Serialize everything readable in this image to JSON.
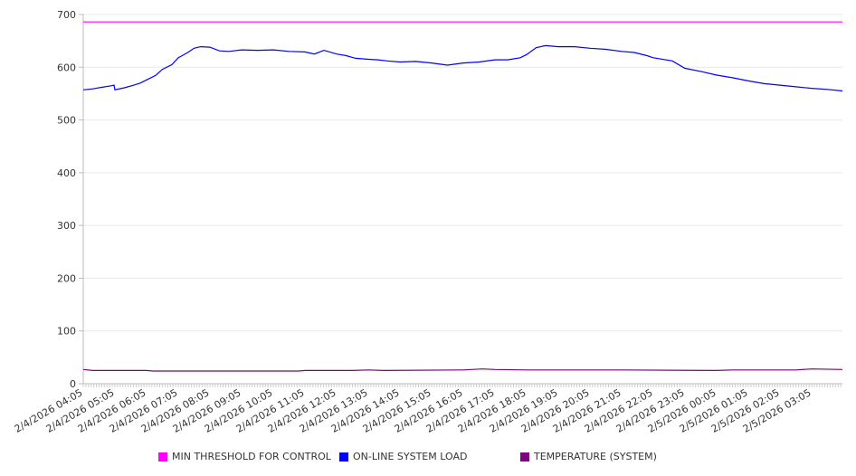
{
  "chart_data": {
    "type": "line",
    "title": "",
    "xlabel": "",
    "ylabel": "",
    "ylim": [
      0,
      700
    ],
    "yticks": [
      0,
      100,
      200,
      300,
      400,
      500,
      600,
      700
    ],
    "x_unit": "hours since 2/4/2026 04:05",
    "xlim": [
      0,
      23.97
    ],
    "xtick_labels": [
      "2/4/2026 04:05",
      "2/4/2026 05:05",
      "2/4/2026 06:05",
      "2/4/2026 07:05",
      "2/4/2026 08:05",
      "2/4/2026 09:05",
      "2/4/2026 10:05",
      "2/4/2026 11:05",
      "2/4/2026 12:05",
      "2/4/2026 13:05",
      "2/4/2026 14:05",
      "2/4/2026 15:05",
      "2/4/2026 16:05",
      "2/4/2026 17:05",
      "2/4/2026 18:05",
      "2/4/2026 19:05",
      "2/4/2026 20:05",
      "2/4/2026 21:05",
      "2/4/2026 22:05",
      "2/4/2026 23:05",
      "2/5/2026 00:05",
      "2/5/2026 01:05",
      "2/5/2026 02:05",
      "2/5/2026 03:05"
    ],
    "grid": true,
    "legend_position": "bottom",
    "series": [
      {
        "name": "MIN THRESHOLD FOR CONTROL",
        "color": "#ff00ff",
        "x": [
          0,
          23.97
        ],
        "y": [
          686,
          686
        ]
      },
      {
        "name": "ON-LINE SYSTEM LOAD",
        "color": "#0000ff",
        "x": [
          0,
          0.3,
          0.6,
          0.9,
          0.97,
          1.0,
          1.3,
          1.6,
          1.8,
          2.0,
          2.3,
          2.5,
          2.8,
          3.0,
          3.3,
          3.5,
          3.7,
          4.0,
          4.3,
          4.6,
          5.0,
          5.5,
          6.0,
          6.5,
          7.0,
          7.3,
          7.6,
          8.0,
          8.3,
          8.6,
          9.0,
          9.3,
          9.6,
          10.0,
          10.5,
          11.0,
          11.5,
          12.0,
          12.5,
          13.0,
          13.4,
          13.8,
          14.0,
          14.3,
          14.6,
          15.0,
          15.5,
          16.0,
          16.5,
          17.0,
          17.4,
          17.8,
          18.0,
          18.6,
          19.0,
          19.5,
          20.0,
          20.5,
          21.0,
          21.5,
          22.0,
          22.5,
          23.0,
          23.5,
          23.97
        ],
        "y": [
          557,
          559,
          562,
          565,
          566,
          557,
          561,
          566,
          570,
          576,
          585,
          596,
          605,
          618,
          628,
          636,
          639,
          638,
          631,
          630,
          633,
          632,
          633,
          630,
          629,
          625,
          632,
          625,
          622,
          617,
          615,
          614,
          612,
          610,
          611,
          608,
          604,
          608,
          610,
          614,
          614,
          618,
          624,
          637,
          641,
          639,
          639,
          636,
          634,
          630,
          628,
          622,
          618,
          612,
          598,
          592,
          585,
          580,
          574,
          569,
          566,
          563,
          560,
          558,
          555
        ]
      },
      {
        "name": "TEMPERATURE (SYSTEM)",
        "color": "#800080",
        "x": [
          0,
          0.3,
          2,
          2.2,
          4,
          6,
          6.8,
          7,
          8.5,
          9,
          9.5,
          12,
          12.6,
          13,
          14,
          14.3,
          17,
          20,
          20.5,
          22.5,
          23,
          23.97
        ],
        "y": [
          27,
          25,
          25,
          24,
          24,
          24,
          24,
          25,
          25,
          26,
          25,
          26,
          28,
          27,
          26,
          26,
          26,
          25,
          26,
          26,
          28,
          27
        ]
      }
    ]
  }
}
